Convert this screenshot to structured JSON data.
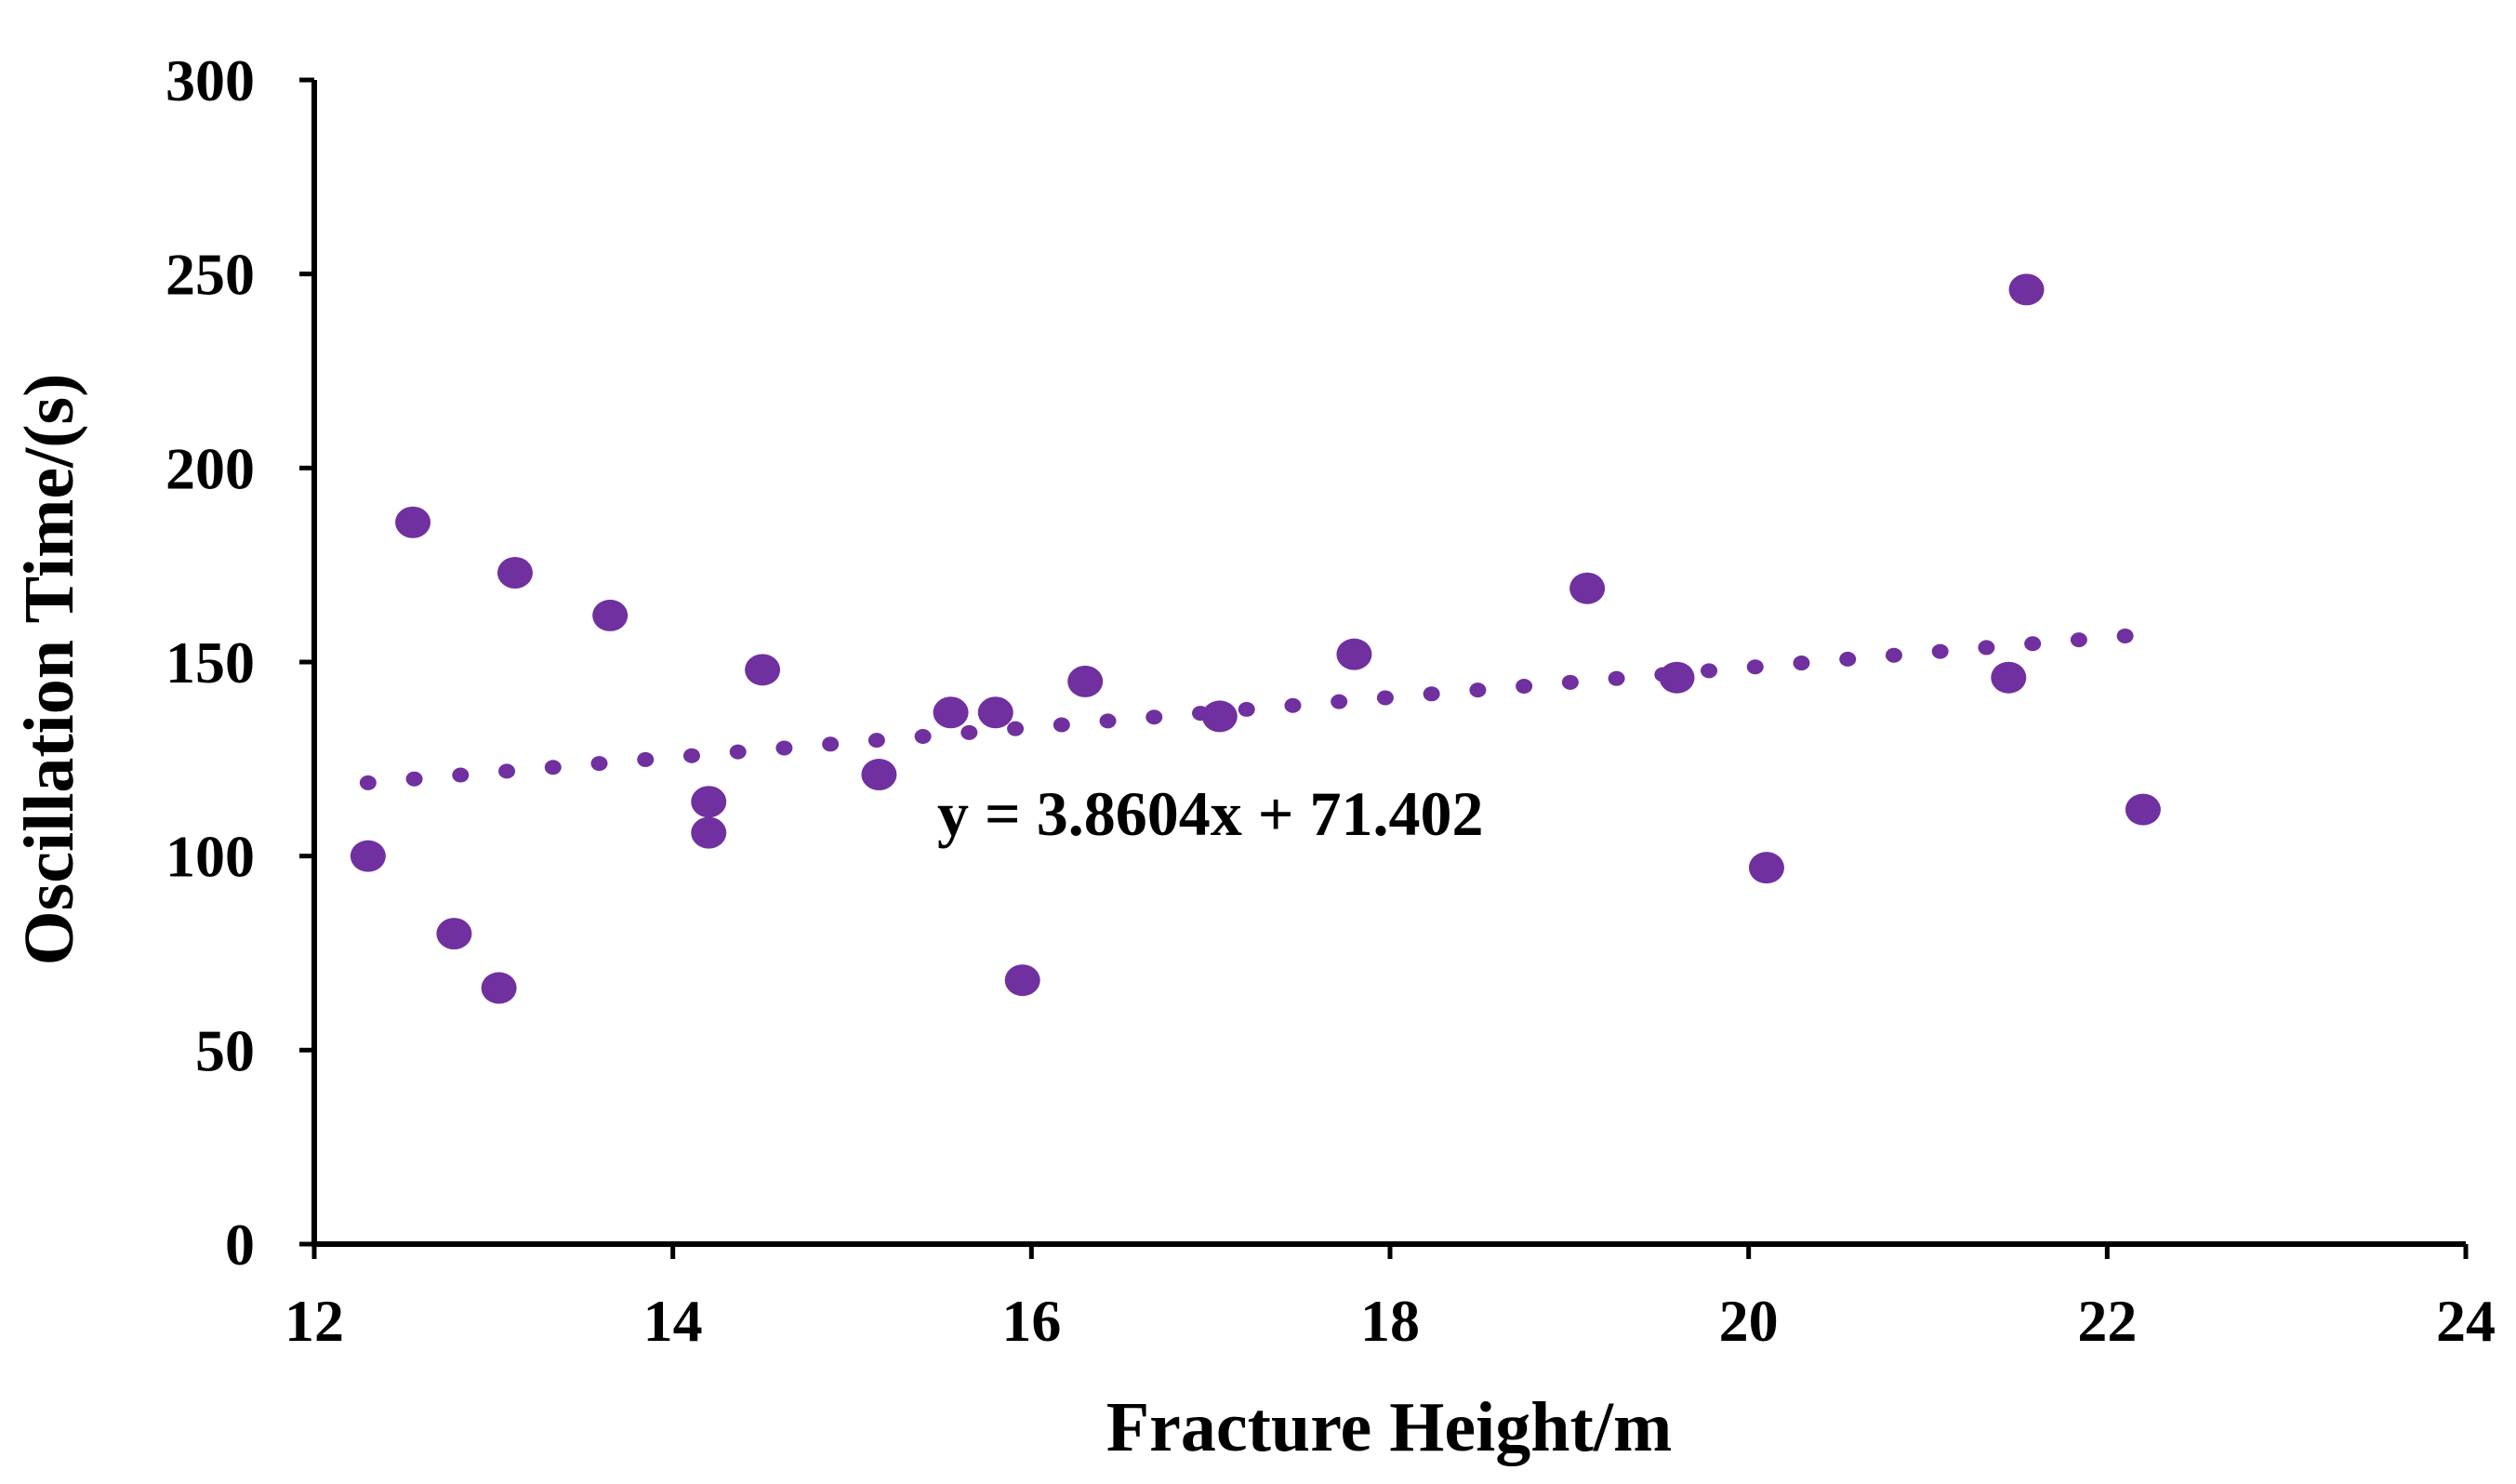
{
  "chart_data": {
    "type": "scatter",
    "title": "",
    "xlabel": "Fracture Height/m",
    "ylabel": "Oscillation Time/(s)",
    "xlim": [
      12,
      24
    ],
    "ylim": [
      0,
      300
    ],
    "xticks": [
      "12",
      "14",
      "16",
      "18",
      "20",
      "22",
      "24"
    ],
    "yticks": [
      "0",
      "50",
      "100",
      "150",
      "200",
      "250",
      "300"
    ],
    "grid": false,
    "legend": "none",
    "marker_color": "#7030A0",
    "series": [
      {
        "points": [
          {
            "x": 12.3,
            "y": 100
          },
          {
            "x": 12.55,
            "y": 186
          },
          {
            "x": 12.78,
            "y": 80
          },
          {
            "x": 13.03,
            "y": 66
          },
          {
            "x": 13.12,
            "y": 173
          },
          {
            "x": 13.65,
            "y": 162
          },
          {
            "x": 14.2,
            "y": 114
          },
          {
            "x": 14.2,
            "y": 106
          },
          {
            "x": 14.5,
            "y": 148
          },
          {
            "x": 15.15,
            "y": 121
          },
          {
            "x": 15.55,
            "y": 137
          },
          {
            "x": 15.8,
            "y": 137
          },
          {
            "x": 15.95,
            "y": 68
          },
          {
            "x": 16.3,
            "y": 145
          },
          {
            "x": 17.05,
            "y": 136
          },
          {
            "x": 17.8,
            "y": 152
          },
          {
            "x": 19.1,
            "y": 169
          },
          {
            "x": 19.6,
            "y": 146
          },
          {
            "x": 20.1,
            "y": 97
          },
          {
            "x": 21.45,
            "y": 146
          },
          {
            "x": 21.55,
            "y": 246
          },
          {
            "x": 22.2,
            "y": 112
          }
        ]
      }
    ],
    "trendline": {
      "slope": 3.8604,
      "intercept": 71.402,
      "x_range": [
        12.3,
        22.1
      ],
      "style": "dotted",
      "color": "#7030A0"
    },
    "annotations": [
      {
        "text": "y = 3.8604x + 71.402"
      }
    ]
  }
}
